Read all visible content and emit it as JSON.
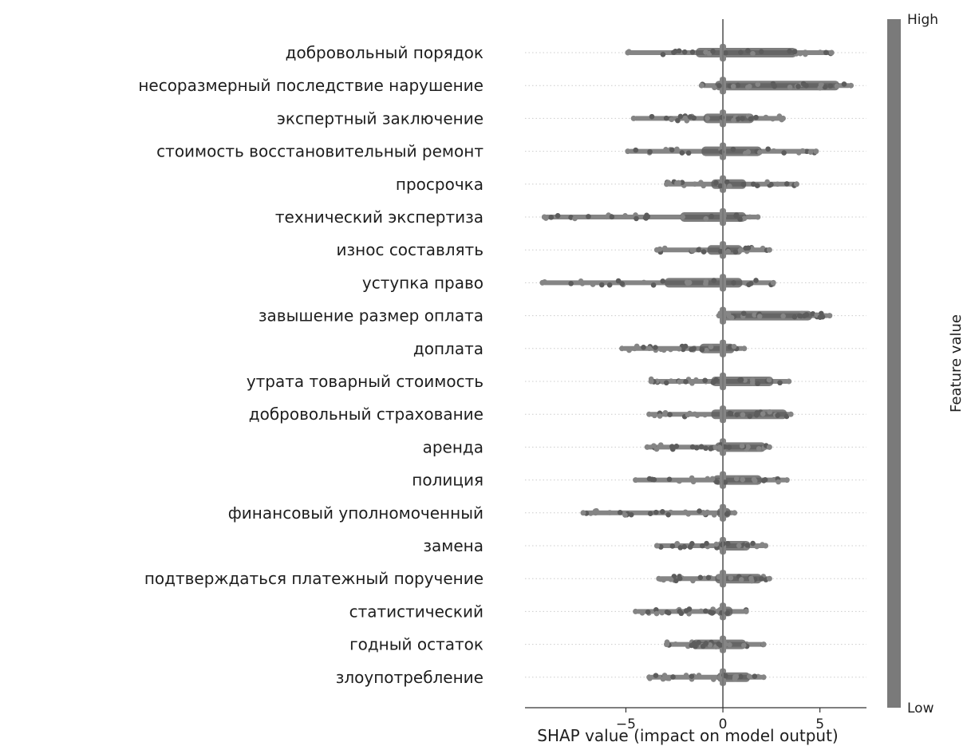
{
  "chart_data": {
    "type": "scatter",
    "subtype": "shap-beeswarm",
    "title": "",
    "xlabel": "SHAP value (impact on model output)",
    "xlim": [
      -10.2,
      7.4
    ],
    "xticks": [
      -5,
      0,
      5
    ],
    "xtick_labels": [
      "−5",
      "0",
      "5"
    ],
    "colorbar": {
      "label": "Feature value",
      "high": "High",
      "low": "Low",
      "color": "#7a7a7a"
    },
    "point_color_light": "#858585",
    "point_color_dark": "#5c5c5c",
    "features": [
      {
        "name": "добровольный порядок",
        "min": -4.9,
        "max": 5.6,
        "dense_min": -1.4,
        "dense_max": 3.8
      },
      {
        "name": "несоразмерный последствие нарушение",
        "min": -1.1,
        "max": 6.6,
        "dense_min": -0.4,
        "dense_max": 6.0
      },
      {
        "name": "экспертный заключение",
        "min": -4.6,
        "max": 3.1,
        "dense_min": -1.0,
        "dense_max": 1.6
      },
      {
        "name": "стоимость восстановительный ремонт",
        "min": -4.9,
        "max": 4.8,
        "dense_min": -1.1,
        "dense_max": 2.0
      },
      {
        "name": "просрочка",
        "min": -2.9,
        "max": 3.8,
        "dense_min": -0.6,
        "dense_max": 1.2
      },
      {
        "name": "технический экспертиза",
        "min": -9.2,
        "max": 1.8,
        "dense_min": -2.2,
        "dense_max": 1.2
      },
      {
        "name": "износ составлять",
        "min": -3.4,
        "max": 2.4,
        "dense_min": -0.8,
        "dense_max": 1.0
      },
      {
        "name": "уступка право",
        "min": -9.3,
        "max": 2.6,
        "dense_min": -3.0,
        "dense_max": 1.0
      },
      {
        "name": "завышение размер оплата",
        "min": -0.2,
        "max": 5.5,
        "dense_min": -0.1,
        "dense_max": 4.6
      },
      {
        "name": "доплата",
        "min": -5.2,
        "max": 1.1,
        "dense_min": -1.2,
        "dense_max": 0.6
      },
      {
        "name": "утрата товарный стоимость",
        "min": -3.7,
        "max": 3.4,
        "dense_min": -0.6,
        "dense_max": 2.6
      },
      {
        "name": "добровольный страхование",
        "min": -3.8,
        "max": 3.5,
        "dense_min": -0.6,
        "dense_max": 3.3
      },
      {
        "name": "аренда",
        "min": -3.9,
        "max": 2.4,
        "dense_min": -0.4,
        "dense_max": 2.2
      },
      {
        "name": "полиция",
        "min": -4.5,
        "max": 3.3,
        "dense_min": -0.5,
        "dense_max": 2.0
      },
      {
        "name": "финансовый уполномоченный",
        "min": -7.2,
        "max": 0.6,
        "dense_min": -0.3,
        "dense_max": 0.4
      },
      {
        "name": "замена",
        "min": -3.4,
        "max": 2.2,
        "dense_min": -0.3,
        "dense_max": 1.4
      },
      {
        "name": "подтверждаться платежный поручение",
        "min": -3.3,
        "max": 2.4,
        "dense_min": -0.4,
        "dense_max": 2.0
      },
      {
        "name": "статистический",
        "min": -4.5,
        "max": 1.2,
        "dense_min": -0.3,
        "dense_max": 0.5
      },
      {
        "name": "годный остаток",
        "min": -2.9,
        "max": 2.1,
        "dense_min": -1.6,
        "dense_max": 1.2
      },
      {
        "name": "злоупотребление",
        "min": -3.8,
        "max": 2.1,
        "dense_min": -0.3,
        "dense_max": 1.4
      }
    ]
  }
}
